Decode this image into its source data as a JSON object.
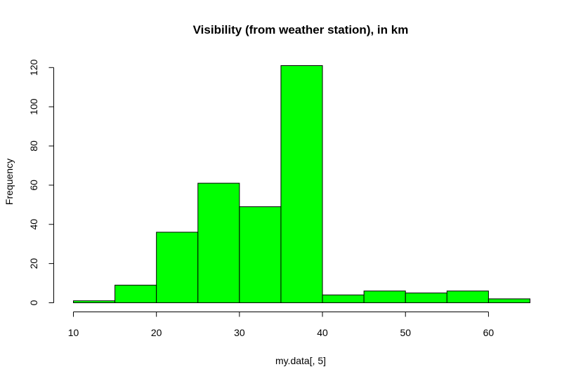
{
  "chart_data": {
    "type": "bar",
    "title": "Visibility (from weather station), in km",
    "xlabel": "my.data[, 5]",
    "ylabel": "Frequency",
    "bin_edges": [
      10,
      15,
      20,
      25,
      30,
      35,
      40,
      45,
      50,
      55,
      60,
      65
    ],
    "values": [
      1,
      9,
      36,
      61,
      49,
      121,
      4,
      6,
      5,
      6,
      2
    ],
    "xlim": [
      10,
      65
    ],
    "ylim": [
      0,
      121
    ],
    "x_ticks": [
      10,
      20,
      30,
      40,
      50,
      60
    ],
    "y_ticks": [
      0,
      20,
      40,
      60,
      80,
      100,
      120
    ],
    "x_tick_labels": [
      "10",
      "20",
      "30",
      "40",
      "50",
      "60"
    ],
    "y_tick_labels": [
      "0",
      "20",
      "40",
      "60",
      "80",
      "100",
      "120"
    ],
    "bar_color": "#00FF00",
    "grid": false,
    "legend": "none"
  }
}
